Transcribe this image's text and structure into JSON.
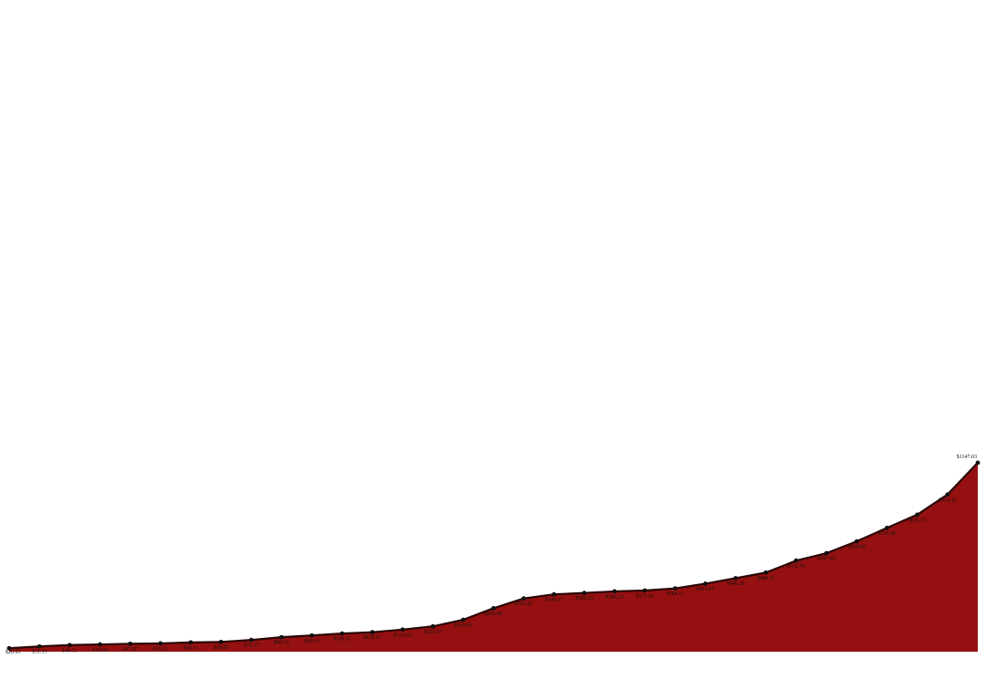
{
  "chart_data": {
    "type": "area",
    "title": "",
    "xlabel": "",
    "ylabel": "",
    "ylim": [
      0,
      2000
    ],
    "grid": false,
    "legend": "none",
    "colors": {
      "fill": "#951010",
      "line": "#2a0505",
      "point": "#111111"
    },
    "series": [
      {
        "values": [
          20.93,
          31.93,
          40.11,
          44.04,
          47.87,
          50.21,
          56.11,
          58.87,
          71.17,
          88.13,
          98.33,
          110.11,
          118.17,
          134.01,
          153.67,
          193.56,
          263.66,
          323.26,
          348.11,
          356.33,
          366.13,
          371.36,
          384.11,
          412.67,
          446.26,
          480.11,
          552.96,
          597.83,
          669.66,
          751.36,
          831.61,
          954.36,
          1147.03
        ],
        "labels": [
          "$20.93",
          "$31.93",
          "$40.11",
          "$44.04",
          "$47.87",
          "$50.21",
          "$56.11",
          "$58.87",
          "$71.17",
          "$88.13",
          "$98.33",
          "$110.11",
          "$118.17",
          "$134.01",
          "$153.67",
          "$193.56",
          "$263.66",
          "$323.26",
          "$348.11",
          "$356.33",
          "$366.13",
          "$371.36",
          "$384.11",
          "$412.67",
          "$446.26",
          "$480.11",
          "$552.96",
          "$597.83",
          "$669.66",
          "$751.36",
          "$831.61",
          "$954.36",
          "$1147.03"
        ]
      }
    ]
  }
}
